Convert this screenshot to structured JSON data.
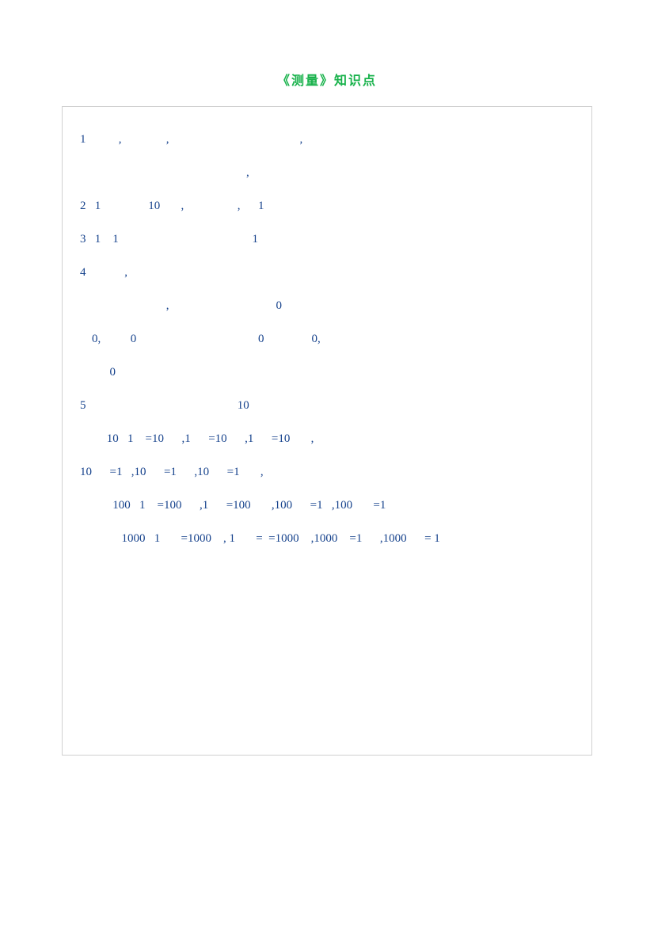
{
  "title": "《测量》知识点",
  "body_color": "#16428c",
  "title_color": "#18b24b",
  "border_color": "#d0d0d0",
  "paragraphs": [
    "1           ,               ,                                            ,",
    "                                                        ,",
    "",
    "2   1                10       ,                  ,      1",
    "",
    "3   1    1                                             1",
    "",
    "4             ,",
    "                             ,                                    0",
    "    0,          0                                         0                0,",
    "          0",
    "",
    "5                                                   10",
    "         10   1    =10      ,1      =10      ,1      =10       ,",
    "10      =1   ,10      =1      ,10      =1       ,",
    "           100   1    =100      ,1      =100       ,100      =1   ,100       =1",
    "              1000   1       =1000    , 1       =  =1000    ,1000    =1      ,1000      = 1"
  ]
}
